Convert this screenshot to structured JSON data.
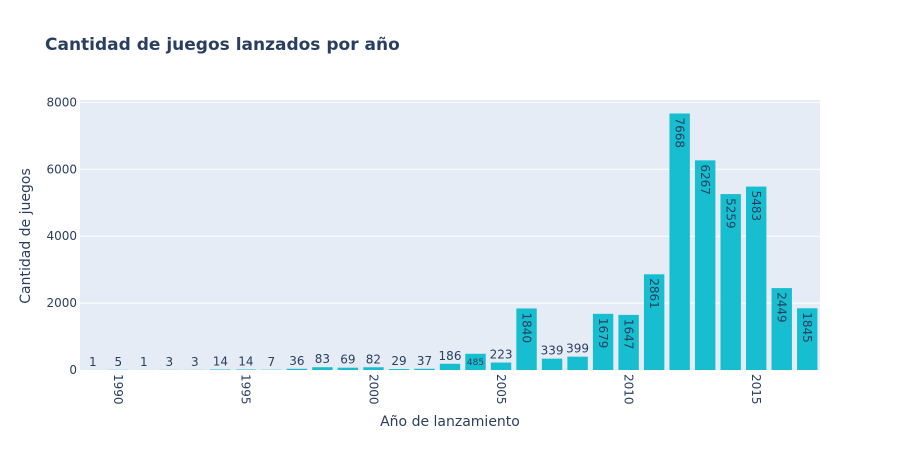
{
  "chart_data": {
    "type": "bar",
    "title": "Cantidad de juegos lanzados por año",
    "xlabel": "Año de lanzamiento",
    "ylabel": "Cantidad de juegos",
    "x": [
      1989,
      1990,
      1991,
      1992,
      1993,
      1994,
      1995,
      1996,
      1997,
      1998,
      1999,
      2000,
      2001,
      2002,
      2003,
      2004,
      2005,
      2006,
      2007,
      2008,
      2009,
      2010,
      2011,
      2012,
      2013,
      2014,
      2015,
      2016,
      2017
    ],
    "values": [
      1,
      5,
      1,
      3,
      3,
      14,
      14,
      7,
      36,
      83,
      69,
      82,
      29,
      37,
      186,
      485,
      223,
      1840,
      339,
      399,
      1679,
      1647,
      2861,
      7668,
      6267,
      5259,
      5483,
      2449,
      1845
    ],
    "x_ticks": [
      1990,
      1995,
      2000,
      2005,
      2010,
      2015
    ],
    "y_ticks": [
      0,
      2000,
      4000,
      6000,
      8000
    ],
    "ylim": [
      0,
      8071
    ],
    "bar_color": "#17becf",
    "plot_bg": "#e5ecf6",
    "grid": true
  }
}
